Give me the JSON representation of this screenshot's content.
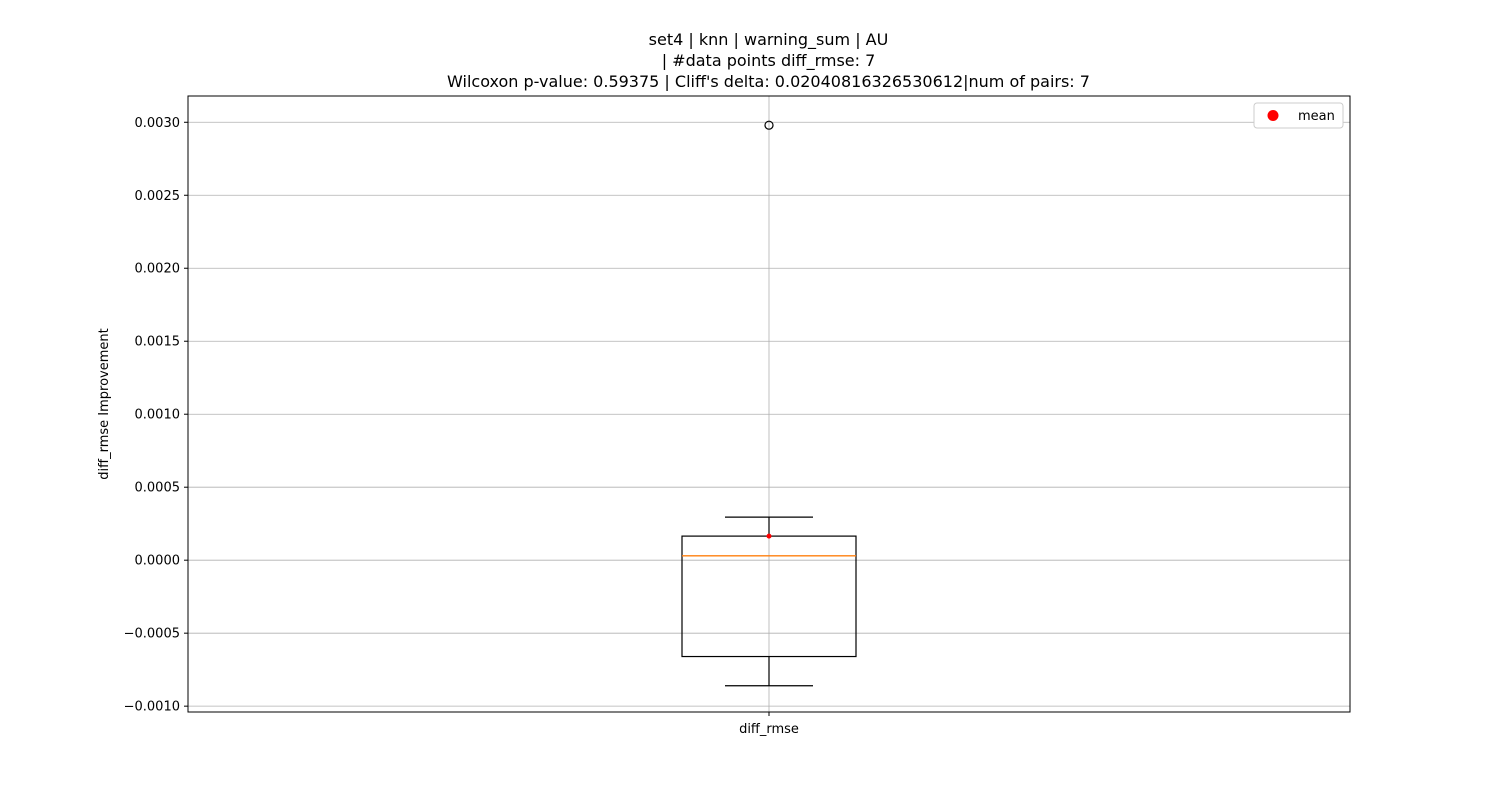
{
  "chart_data": {
    "type": "box",
    "title": [
      "set4 | knn | warning_sum | AU",
      "| #data points diff_rmse: 7",
      "Wilcoxon p-value: 0.59375 | Cliff's delta: 0.02040816326530612|num of pairs: 7"
    ],
    "xlabel": "",
    "ylabel": "diff_rmse Improvement",
    "ylim": [
      -0.00104,
      0.00318
    ],
    "yticks": [
      -0.001,
      -0.0005,
      0.0,
      0.0005,
      0.001,
      0.0015,
      0.002,
      0.0025,
      0.003
    ],
    "ytick_labels": [
      "−0.0010",
      "−0.0005",
      "0.0000",
      "0.0005",
      "0.0010",
      "0.0015",
      "0.0020",
      "0.0025",
      "0.0030"
    ],
    "grid": true,
    "categories": [
      "diff_rmse"
    ],
    "boxes": [
      {
        "name": "diff_rmse",
        "whisker_low": -0.00086,
        "q1": -0.00066,
        "median": 3e-05,
        "q3": 0.000165,
        "whisker_high": 0.000295,
        "mean": 0.000165,
        "outliers": [
          0.00298
        ]
      }
    ],
    "legend": {
      "position": "top-right",
      "entries": [
        "mean"
      ]
    },
    "colors": {
      "median": "#ff7f0e",
      "mean": "#ff0000",
      "box": "#000000",
      "grid": "#b0b0b0"
    }
  }
}
